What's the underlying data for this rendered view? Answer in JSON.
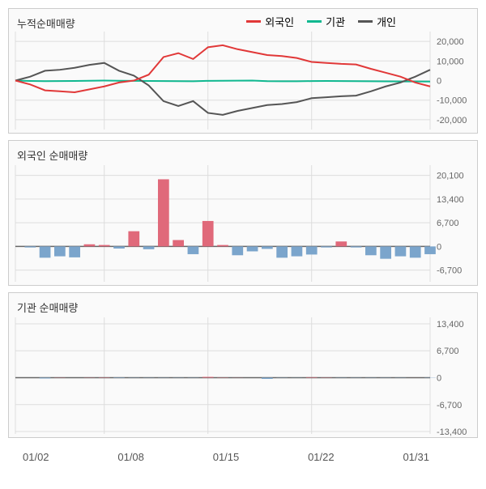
{
  "panels": {
    "cumulative": {
      "title": "누적순매매량",
      "type": "line",
      "legend": [
        {
          "label": "외국인",
          "color": "#e13838"
        },
        {
          "label": "기관",
          "color": "#10b890"
        },
        {
          "label": "개인",
          "color": "#555555"
        }
      ],
      "ylim": [
        -25000,
        25000
      ],
      "yticks": [
        -20000,
        -10000,
        0,
        10000,
        20000
      ],
      "ytick_labels": [
        "-20,000",
        "-10,000",
        "0",
        "10,000",
        "20,000"
      ],
      "grid_color": "#dddddd",
      "background_color": "#fafafa",
      "label_fontsize": 11,
      "title_fontsize": 13,
      "series": {
        "foreign": {
          "color": "#e13838",
          "width": 2,
          "data": [
            0,
            -2000,
            -5000,
            -5500,
            -6000,
            -4500,
            -3000,
            -1000,
            0,
            3000,
            12000,
            14000,
            11000,
            17000,
            18000,
            16000,
            14500,
            13000,
            12500,
            11500,
            9500,
            9000,
            8500,
            8200,
            6000,
            4000,
            2000,
            -1000,
            -3000
          ]
        },
        "institution": {
          "color": "#10b890",
          "width": 2,
          "data": [
            0,
            -200,
            -300,
            -250,
            -200,
            -100,
            0,
            -100,
            -150,
            -200,
            -250,
            -300,
            -350,
            -150,
            -80,
            -50,
            0,
            -300,
            -350,
            -380,
            -260,
            -200,
            -250,
            -300,
            -350,
            -400,
            -450,
            -440,
            -500
          ]
        },
        "individual": {
          "color": "#555555",
          "width": 2,
          "data": [
            0,
            2000,
            5000,
            5500,
            6500,
            8000,
            9000,
            5000,
            2500,
            -2500,
            -10500,
            -13000,
            -10500,
            -16500,
            -17500,
            -15500,
            -14000,
            -12500,
            -12000,
            -11000,
            -9000,
            -8500,
            -8000,
            -7700,
            -5500,
            -3000,
            -1000,
            2000,
            5500
          ]
        }
      }
    },
    "foreign": {
      "title": "외국인 순매매량",
      "type": "bar",
      "ylim": [
        -10000,
        23000
      ],
      "yticks": [
        -6700,
        0,
        6700,
        13400,
        20100
      ],
      "ytick_labels": [
        "-6,700",
        "0",
        "6,700",
        "13,400",
        "20,100"
      ],
      "zero_color": "#666666",
      "grid_color": "#dddddd",
      "background_color": "#fafafa",
      "bar_width": 0.75,
      "pos_color": "#e0697a",
      "neg_color": "#7ba5cc",
      "data": [
        0,
        -300,
        -3200,
        -2800,
        -3100,
        600,
        400,
        -600,
        4300,
        -800,
        19000,
        1800,
        -2200,
        7200,
        400,
        -2500,
        -1400,
        -700,
        -3200,
        -2800,
        -2300,
        -300,
        1400,
        -300,
        -2500,
        -3500,
        -2800,
        -3200,
        -2200
      ]
    },
    "institution": {
      "title": "기관 순매매량",
      "type": "bar",
      "ylim": [
        -14000,
        15000
      ],
      "yticks": [
        -13400,
        -6700,
        0,
        6700,
        13400
      ],
      "ytick_labels": [
        "-13,400",
        "-6,700",
        "0",
        "6,700",
        "13,400"
      ],
      "zero_color": "#666666",
      "grid_color": "#dddddd",
      "background_color": "#fafafa",
      "bar_width": 0.75,
      "pos_color": "#e0697a",
      "neg_color": "#7ba5cc",
      "data": [
        0,
        0,
        -200,
        50,
        0,
        50,
        80,
        -100,
        -50,
        -50,
        -50,
        -50,
        -50,
        200,
        70,
        30,
        0,
        -300,
        -50,
        -30,
        120,
        60,
        -50,
        -50,
        -50,
        -50,
        -50,
        10,
        -60
      ]
    }
  },
  "x_axis": {
    "ticks": [
      "01/02",
      "01/08",
      "01/15",
      "01/22",
      "01/31"
    ],
    "positions": [
      0,
      6,
      13,
      20,
      28
    ],
    "n_points": 29
  }
}
